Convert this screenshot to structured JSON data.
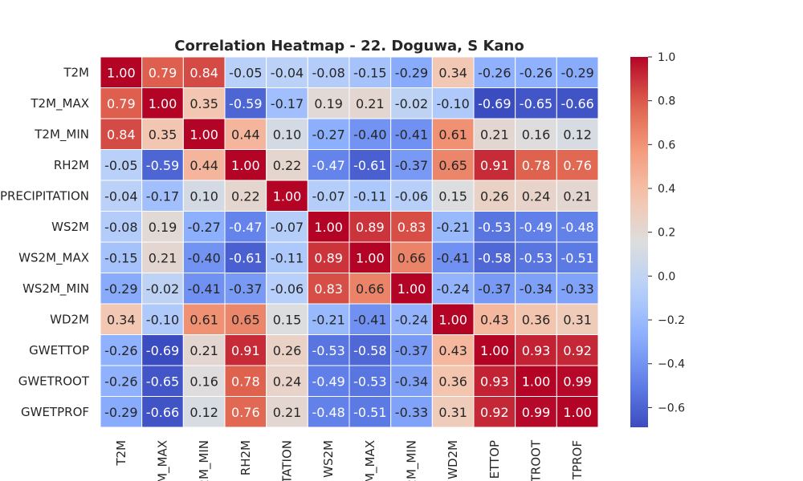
{
  "chart_data": {
    "type": "heatmap",
    "title": "Correlation Heatmap - 22. Doguwa, S Kano",
    "variables": [
      "T2M",
      "T2M_MAX",
      "T2M_MIN",
      "RH2M",
      "PRECIPITATION",
      "WS2M",
      "WS2M_MAX",
      "WS2M_MIN",
      "WD2M",
      "GWETTOP",
      "GWETROOT",
      "GWETPROF"
    ],
    "x_tick_labels": [
      "T2M",
      "M_MAX",
      "2M_MIN",
      "RH2M",
      "TATION",
      "WS2M",
      "M_MAX",
      "2M_MIN",
      "WD2M",
      "ETTOP",
      "TROOT",
      "TPROF"
    ],
    "y_tick_labels": [
      "T2M",
      "T2M_MAX",
      "T2M_MIN",
      "RH2M",
      "PRECIPITATION",
      "WS2M",
      "WS2M_MAX",
      "WS2M_MIN",
      "WD2M",
      "GWETTOP",
      "GWETROOT",
      "GWETPROF"
    ],
    "matrix": [
      [
        1.0,
        0.79,
        0.84,
        -0.05,
        -0.04,
        -0.08,
        -0.15,
        -0.29,
        0.34,
        -0.26,
        -0.26,
        -0.29
      ],
      [
        0.79,
        1.0,
        0.35,
        -0.59,
        -0.17,
        0.19,
        0.21,
        -0.02,
        -0.1,
        -0.69,
        -0.65,
        -0.66
      ],
      [
        0.84,
        0.35,
        1.0,
        0.44,
        0.1,
        -0.27,
        -0.4,
        -0.41,
        0.61,
        0.21,
        0.16,
        0.12
      ],
      [
        -0.05,
        -0.59,
        0.44,
        1.0,
        0.22,
        -0.47,
        -0.61,
        -0.37,
        0.65,
        0.91,
        0.78,
        0.76
      ],
      [
        -0.04,
        -0.17,
        0.1,
        0.22,
        1.0,
        -0.07,
        -0.11,
        -0.06,
        0.15,
        0.26,
        0.24,
        0.21
      ],
      [
        -0.08,
        0.19,
        -0.27,
        -0.47,
        -0.07,
        1.0,
        0.89,
        0.83,
        -0.21,
        -0.53,
        -0.49,
        -0.48
      ],
      [
        -0.15,
        0.21,
        -0.4,
        -0.61,
        -0.11,
        0.89,
        1.0,
        0.66,
        -0.41,
        -0.58,
        -0.53,
        -0.51
      ],
      [
        -0.29,
        -0.02,
        -0.41,
        -0.37,
        -0.06,
        0.83,
        0.66,
        1.0,
        -0.24,
        -0.37,
        -0.34,
        -0.33
      ],
      [
        0.34,
        -0.1,
        0.61,
        0.65,
        0.15,
        -0.21,
        -0.41,
        -0.24,
        1.0,
        0.43,
        0.36,
        0.31
      ],
      [
        -0.26,
        -0.69,
        0.21,
        0.91,
        0.26,
        -0.53,
        -0.58,
        -0.37,
        0.43,
        1.0,
        0.93,
        0.92
      ],
      [
        -0.26,
        -0.65,
        0.16,
        0.78,
        0.24,
        -0.49,
        -0.53,
        -0.34,
        0.36,
        0.93,
        1.0,
        0.99
      ],
      [
        -0.29,
        -0.66,
        0.12,
        0.76,
        0.21,
        -0.48,
        -0.51,
        -0.33,
        0.31,
        0.92,
        0.99,
        1.0
      ]
    ],
    "value_format": "2 decimals",
    "colormap": "coolwarm",
    "color_range": [
      -0.69,
      1.0
    ],
    "colorbar": {
      "ticks": [
        1.0,
        0.8,
        0.6,
        0.4,
        0.2,
        0.0,
        -0.2,
        -0.4,
        -0.6
      ],
      "tick_labels": [
        "1.0",
        "0.8",
        "0.6",
        "0.4",
        "0.2",
        "0.0",
        "−0.2",
        "−0.4",
        "−0.6"
      ],
      "placement": "right"
    },
    "grid": "white lines between cells",
    "annotations": "cell values"
  }
}
